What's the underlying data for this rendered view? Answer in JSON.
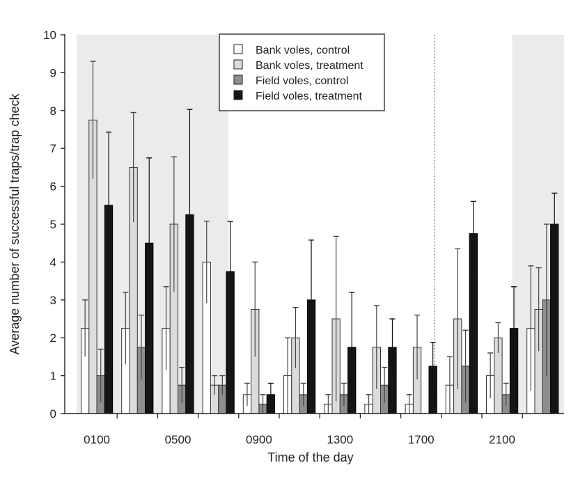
{
  "chart_data": {
    "type": "bar",
    "title": "",
    "xlabel": "Time of the day",
    "ylabel": "Average number of successful traps/trap check",
    "ylim": [
      0,
      10
    ],
    "yticks": [
      "0",
      "1",
      "2",
      "3",
      "4",
      "5",
      "6",
      "7",
      "8",
      "9",
      "10"
    ],
    "xtick_labels": [
      "0100",
      "0500",
      "0900",
      "1300",
      "1700",
      "2100"
    ],
    "categories": [
      "0100",
      "0300",
      "0500",
      "0700",
      "0900",
      "1100",
      "1300",
      "1500",
      "1700",
      "1900",
      "2100",
      "2300"
    ],
    "series": [
      {
        "name": "Bank voles, control",
        "color": "#ffffff",
        "values": [
          2.25,
          2.25,
          2.25,
          4.0,
          0.5,
          1.0,
          0.25,
          0.25,
          0.25,
          0.75,
          1.0,
          2.25
        ],
        "err": [
          0.75,
          0.95,
          1.1,
          1.08,
          0.3,
          1.0,
          0.25,
          0.25,
          0.25,
          0.75,
          0.6,
          1.65
        ]
      },
      {
        "name": "Bank voles, treatment",
        "color": "#dcdcdc",
        "values": [
          7.75,
          6.5,
          5.0,
          0.75,
          2.75,
          2.0,
          2.5,
          1.75,
          1.75,
          2.5,
          2.0,
          2.75
        ],
        "err": [
          1.55,
          1.45,
          1.78,
          0.25,
          1.25,
          0.8,
          2.18,
          1.1,
          0.85,
          1.85,
          0.4,
          1.1
        ]
      },
      {
        "name": "Field voles, control",
        "color": "#8e8e8e",
        "values": [
          1.0,
          1.75,
          0.75,
          0.75,
          0.25,
          0.5,
          0.5,
          0.75,
          0.0,
          1.25,
          0.5,
          3.0
        ],
        "err": [
          0.7,
          0.85,
          0.47,
          0.25,
          0.25,
          0.3,
          0.3,
          0.47,
          0.0,
          0.95,
          0.3,
          2.0
        ]
      },
      {
        "name": "Field voles, treatment",
        "color": "#151515",
        "values": [
          5.5,
          4.5,
          5.25,
          3.75,
          0.5,
          3.0,
          1.75,
          1.75,
          1.25,
          4.75,
          2.25,
          5.0
        ],
        "err": [
          1.93,
          2.25,
          2.78,
          1.32,
          0.3,
          1.58,
          1.45,
          0.75,
          0.63,
          0.85,
          1.1,
          0.82
        ]
      }
    ],
    "night_shading": [
      {
        "from": "0000",
        "to": "0730"
      },
      {
        "from": "2130",
        "to": "2400"
      }
    ],
    "reference_line": "1740",
    "legend_position": "top-center",
    "grid": false
  }
}
